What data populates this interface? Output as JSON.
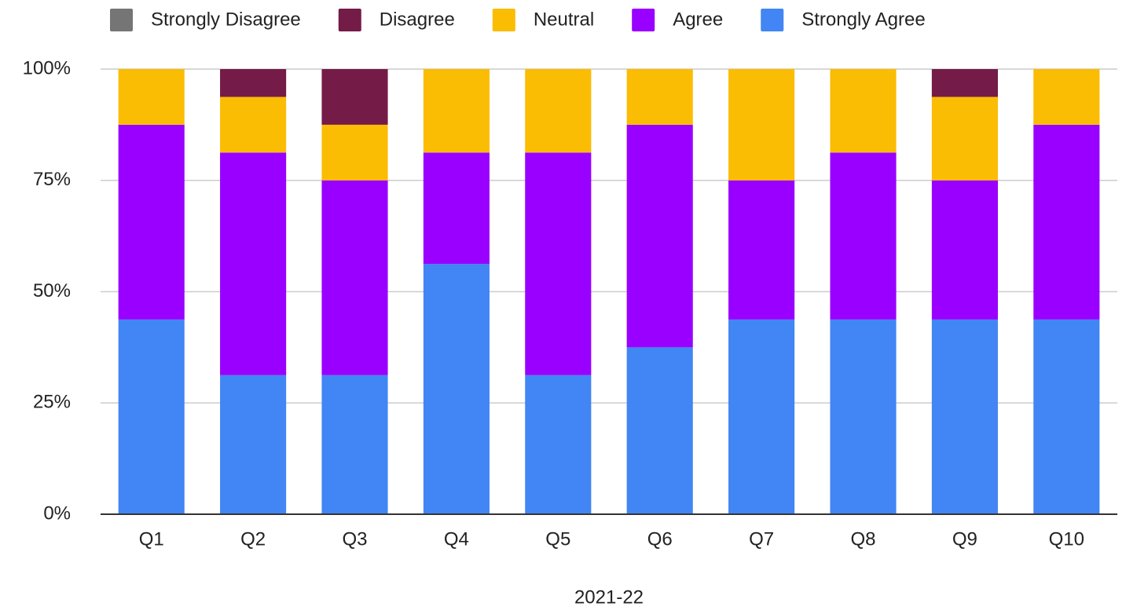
{
  "chart_data": {
    "type": "stacked_bar",
    "x_label": "2021-22",
    "categories": [
      "Q1",
      "Q2",
      "Q3",
      "Q4",
      "Q5",
      "Q6",
      "Q7",
      "Q8",
      "Q9",
      "Q10"
    ],
    "series": [
      {
        "name": "Strongly Disagree",
        "color": "#757575",
        "values": [
          0,
          0,
          0,
          0,
          0,
          0,
          0,
          0,
          0,
          0
        ]
      },
      {
        "name": "Disagree",
        "color": "#741b47",
        "values": [
          0,
          6.25,
          12.5,
          0,
          0,
          0,
          0,
          0,
          6.25,
          0
        ]
      },
      {
        "name": "Neutral",
        "color": "#fbbc04",
        "values": [
          12.5,
          12.5,
          12.5,
          18.75,
          18.75,
          12.5,
          25,
          18.75,
          18.75,
          12.5
        ]
      },
      {
        "name": "Agree",
        "color": "#9900ff",
        "values": [
          43.75,
          50,
          43.75,
          25,
          50,
          50,
          31.25,
          37.5,
          31.25,
          43.75
        ]
      },
      {
        "name": "Strongly Agree",
        "color": "#4285f4",
        "values": [
          43.75,
          31.25,
          31.25,
          56.25,
          31.25,
          37.5,
          43.75,
          43.75,
          43.75,
          43.75
        ]
      }
    ],
    "ylim": [
      0,
      100
    ],
    "yticks": [
      {
        "value": 0,
        "label": "0%"
      },
      {
        "value": 25,
        "label": "25%"
      },
      {
        "value": 50,
        "label": "50%"
      },
      {
        "value": 75,
        "label": "75%"
      },
      {
        "value": 100,
        "label": "100%"
      }
    ],
    "grid": true,
    "legend": "top"
  }
}
